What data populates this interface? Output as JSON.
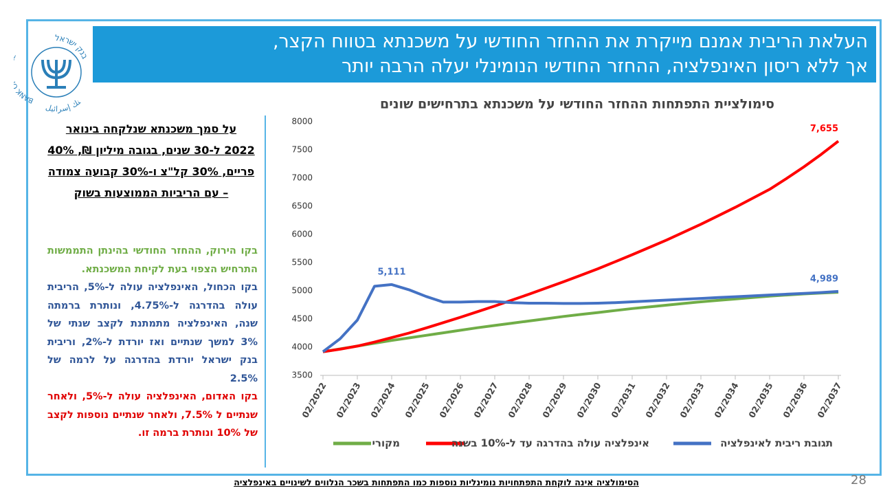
{
  "header": {
    "title_lines": [
      "העלאת הריבית אמנם מייקרת את ההחזר החודשי על משכנתא בטווח הקצר,",
      "אך ללא ריסון האינפלציה, ההחזר החודשי הנומינלי יעלה הרבה יותר"
    ]
  },
  "logo": {
    "english": "BANK OF ISRAEL",
    "hebrew": "בנק ישראל",
    "arabic": "بنك إسرائيل"
  },
  "panel": {
    "intro_lines": [
      "על סמך משכנתא שנלקחה בינואר",
      "2022 ל-30 שנים, בגובה מיליון ₪, 40%",
      "פריים, 30% קל\"צ ו-30% קבועה צמודה",
      "– עם הריביות הממוצעות בשוק"
    ],
    "bullets": [
      {
        "text": "בקו הירוק, ההחזר החודשי בהינתן התממשות התרחיש הצפוי בעת לקיחת המשכנתא.",
        "color": "#70ad47"
      },
      {
        "text": "בקו הכחול, האינפלציה עולה ל-5%, הריבית עולה בהדרגה ל-4.75%, ונותרת ברמתה שנה, האינפלציה מתמתנת לקצב שנתי של 3% למשך שנתיים ואז יורדת ל-2%, וריבית בנק ישראל יורדת בהדרגה על לרמה של 2.5%",
        "color": "#2f5597"
      },
      {
        "text": "בקו האדום, האינפלציה עולה ל-5%, ולאחר שנתיים ל 7.5%, ולאחר שנתיים נוספות לקצב של 10% ונותרת ברמה זו.",
        "color": "#e00000"
      }
    ]
  },
  "footer": {
    "note": "הסימולציה אינה לוקחת התפתחויות נומינליות נוספות כמו התפתחות בשכר הנלווים לשינויים באינפלציה",
    "page_number": 28
  },
  "chart_data": {
    "type": "line",
    "title": "סימולציית התפתחות ההחזר החודשי על משכנתא בתרחישים שונים",
    "categories": [
      "02/2022",
      null,
      "02/2023",
      null,
      "02/2024",
      null,
      "02/2025",
      null,
      "02/2026",
      null,
      "02/2027",
      null,
      "02/2028",
      null,
      "02/2029",
      null,
      "02/2030",
      null,
      "02/2031",
      null,
      "02/2032",
      null,
      "02/2033",
      null,
      "02/2034",
      null,
      "02/2035",
      null,
      "02/2036",
      null,
      "02/2037"
    ],
    "ylim": [
      3500,
      8000
    ],
    "yticks": [
      3500,
      4000,
      4500,
      5000,
      5500,
      6000,
      6500,
      7000,
      7500,
      8000
    ],
    "series": [
      {
        "name": "מקורי",
        "color": "#70ad47",
        "values": [
          3920,
          3970,
          4020,
          4070,
          4120,
          4165,
          4210,
          4255,
          4300,
          4345,
          4385,
          4425,
          4465,
          4505,
          4545,
          4580,
          4615,
          4650,
          4685,
          4715,
          4745,
          4775,
          4805,
          4830,
          4855,
          4880,
          4905,
          4925,
          4945,
          4960,
          4975
        ]
      },
      {
        "name": "אינפלציה עולה בהדרגה עד ל-10% בשנה",
        "color": "#ff0000",
        "values": [
          3920,
          3965,
          4020,
          4090,
          4170,
          4250,
          4340,
          4435,
          4530,
          4630,
          4730,
          4835,
          4940,
          5050,
          5160,
          5275,
          5390,
          5515,
          5640,
          5770,
          5900,
          6040,
          6180,
          6330,
          6480,
          6640,
          6800,
          6995,
          7200,
          7420,
          7655
        ],
        "value_labels": [
          null,
          null,
          null,
          null,
          null,
          null,
          null,
          null,
          null,
          null,
          null,
          null,
          null,
          null,
          null,
          null,
          null,
          null,
          null,
          null,
          null,
          null,
          null,
          null,
          null,
          null,
          null,
          null,
          null,
          null,
          "7,655"
        ]
      },
      {
        "name": "תגובת ריבית לאינפלציה",
        "color": "#4472c4",
        "values": [
          3920,
          4150,
          4480,
          5080,
          5111,
          5020,
          4900,
          4800,
          4800,
          4810,
          4810,
          4790,
          4780,
          4780,
          4775,
          4775,
          4780,
          4790,
          4805,
          4820,
          4835,
          4850,
          4865,
          4880,
          4895,
          4910,
          4925,
          4940,
          4955,
          4970,
          4989
        ],
        "value_labels": [
          null,
          null,
          null,
          null,
          "5,111",
          null,
          null,
          null,
          null,
          null,
          null,
          null,
          null,
          null,
          null,
          null,
          null,
          null,
          null,
          null,
          null,
          null,
          null,
          null,
          null,
          null,
          null,
          null,
          null,
          null,
          "4,989"
        ]
      }
    ]
  }
}
